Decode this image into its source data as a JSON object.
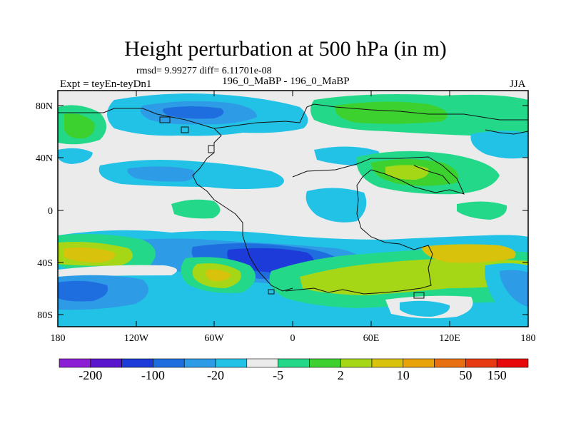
{
  "header": {
    "title": "Height perturbation at 500 hPa (in m)",
    "stats": "rmsd= 9.99277 diff= 6.11701e-08",
    "experiment": "Expt = teyEn-teyDn1",
    "subtitle": "196_0_MaBP - 196_0_MaBP",
    "season": "JJA"
  },
  "map": {
    "lat_ticks": [
      "80N",
      "40N",
      "0",
      "40S",
      "80S"
    ],
    "lon_ticks": [
      "180",
      "120W",
      "60W",
      "0",
      "60E",
      "120E",
      "180"
    ]
  },
  "colorbar": {
    "colors": [
      "#8c1fd6",
      "#5a16cc",
      "#1c3bd8",
      "#1f6ee0",
      "#2e9be6",
      "#22c2e6",
      "#ebebeb",
      "#24d88a",
      "#3cd12e",
      "#a6d716",
      "#d8c20c",
      "#e8a20a",
      "#e87010",
      "#e83a10",
      "#e80a0a"
    ],
    "labels": [
      "-200",
      "-100",
      "-20",
      "-5",
      "2",
      "10",
      "50",
      "150"
    ],
    "label_after_box": [
      1,
      3,
      5,
      7,
      9,
      11,
      13,
      14
    ]
  },
  "colors": {
    "background_field": "#ebebeb",
    "coastline": "#111111"
  }
}
